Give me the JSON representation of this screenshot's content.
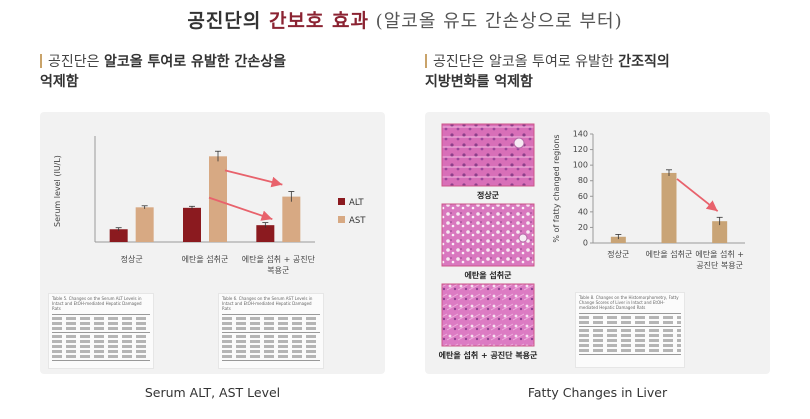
{
  "title": {
    "part1": "공진단의 ",
    "highlight": "간보호 효과",
    "part2": " (알코올 유도 간손상으로 부터)"
  },
  "left": {
    "subhead": {
      "pre": "공진단은 ",
      "bold1": "알코올 투여로 유발한 간손상을",
      "line2": "억제함"
    },
    "chart_caption": "Serum ALT, AST Level",
    "table_titles": [
      "Table 5. Changes on the Serum ALT Levels in Intact and EtOH-mediated Hepatic Damaged Rats",
      "Table 6. Changes on the Serum AST Levels in Intact and EtOH-mediated Hepatic Damaged Rats"
    ]
  },
  "right": {
    "subhead": {
      "pre": "공진단은 알코올 투여로 유발한 ",
      "bold1": "간조직의",
      "line2": "지방변화를 억제함"
    },
    "chart_caption": "Fatty Changes in Liver",
    "image_labels": [
      "정상군",
      "에탄올 섭취군",
      "에탄올 섭취 + 공진단 복용군"
    ],
    "table_title": "Table 8. Changes on the Histomorphometry, Fatty Change Scores of Liver in Intact and EtOH-mediated Hepatic Damaged Rats"
  },
  "colors": {
    "alt": "#8b1a1f",
    "ast": "#d7a983",
    "fatty": "#c9a476",
    "arrow": "#e8626c",
    "accent": "#8b2332"
  },
  "chart_data": [
    {
      "type": "bar",
      "ylabel": "Serum level (IU/L)",
      "categories": [
        "정상군",
        "에탄올 섭취군",
        "에탄올 섭취 + 공진단\n복용군"
      ],
      "series": [
        {
          "name": "ALT",
          "values": [
            25,
            67,
            33
          ],
          "err": [
            3,
            3,
            5
          ]
        },
        {
          "name": "AST",
          "values": [
            68,
            168,
            89
          ],
          "err": [
            3,
            10,
            10
          ]
        }
      ],
      "ylim": [
        0,
        200
      ],
      "legend": "right",
      "grid": false
    },
    {
      "type": "bar",
      "ylabel": "% of fatty changed regions",
      "categories": [
        "정상군",
        "에탄올 섭취군",
        "에탄올 섭취 +\n공진단 복용군"
      ],
      "values": [
        8,
        90,
        28
      ],
      "err": [
        3,
        4,
        5
      ],
      "ylim": [
        0,
        140
      ],
      "yticks": [
        0,
        20,
        40,
        60,
        80,
        100,
        120,
        140
      ]
    }
  ]
}
